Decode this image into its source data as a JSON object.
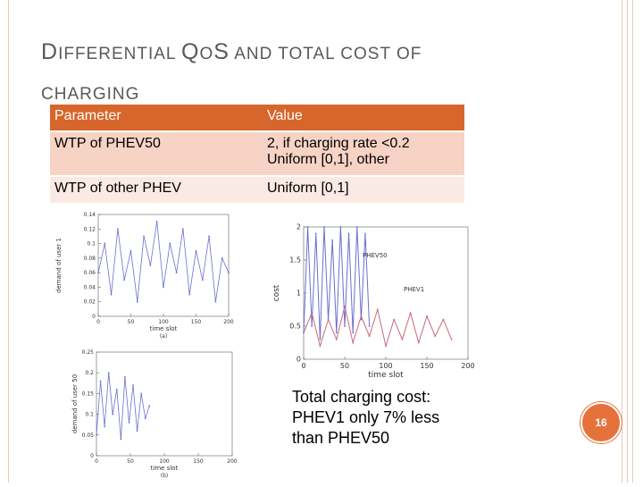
{
  "slide": {
    "title_line1_cap1": "D",
    "title_line1_rest1": "IFFERENTIAL ",
    "title_line1_cap2": "Q",
    "title_line1_rest2": "O",
    "title_line1_cap3": "S",
    "title_line1_rest3": " AND TOTAL COST OF",
    "title_line2": "CHARGING",
    "slide_number": "16"
  },
  "table": {
    "header": [
      "Parameter",
      "Value"
    ],
    "rows": [
      {
        "param": "WTP of PHEV50",
        "value_line1": "2, if charging rate <0.2",
        "value_line2": "Uniform [0,1], other"
      },
      {
        "param": "WTP of other PHEV",
        "value_line1": "Uniform [0,1]",
        "value_line2": ""
      }
    ]
  },
  "caption": {
    "line1": "Total charging cost:",
    "line2": "PHEV1 only 7% less",
    "line3": "than PHEV50"
  },
  "colors": {
    "accent": "#d7662c",
    "row1": "#f6d3c4",
    "row2": "#fbeae3",
    "series_blue": "#6a6fd0",
    "series_red": "#c86a7c"
  },
  "chart_data": [
    {
      "type": "line",
      "title": "",
      "xlabel": "time slot",
      "ylabel": "demand of user 1",
      "panel_label": "(a)",
      "x_ticks": [
        "0",
        "50",
        "100",
        "150",
        "200"
      ],
      "y_ticks": [
        "0",
        "0.02",
        "0.04",
        "0.06",
        "0.08",
        "0.1",
        "0.12",
        "0.14"
      ],
      "xlim": [
        0,
        200
      ],
      "ylim": [
        0,
        0.14
      ],
      "series": [
        {
          "name": "user 1",
          "x": [
            0,
            10,
            20,
            30,
            40,
            50,
            60,
            70,
            80,
            90,
            100,
            110,
            120,
            130,
            140,
            150,
            160,
            170,
            180,
            190,
            200
          ],
          "values": [
            0.06,
            0.1,
            0.03,
            0.12,
            0.05,
            0.09,
            0.02,
            0.11,
            0.07,
            0.13,
            0.04,
            0.1,
            0.06,
            0.12,
            0.03,
            0.09,
            0.05,
            0.11,
            0.02,
            0.08,
            0.06
          ]
        }
      ]
    },
    {
      "type": "line",
      "title": "",
      "xlabel": "time slot",
      "ylabel": "demand of user 50",
      "panel_label": "(b)",
      "x_ticks": [
        "0",
        "50",
        "100",
        "150",
        "200"
      ],
      "y_ticks": [
        "0",
        "0.05",
        "0.1",
        "0.15",
        "0.2",
        "0.25"
      ],
      "xlim": [
        0,
        200
      ],
      "ylim": [
        0,
        0.25
      ],
      "series": [
        {
          "name": "user 50",
          "x": [
            0,
            6,
            12,
            18,
            24,
            30,
            36,
            42,
            48,
            54,
            60,
            66,
            72,
            78
          ],
          "values": [
            0.05,
            0.18,
            0.07,
            0.2,
            0.1,
            0.16,
            0.04,
            0.19,
            0.08,
            0.17,
            0.06,
            0.15,
            0.09,
            0.12
          ]
        }
      ]
    },
    {
      "type": "line",
      "title": "",
      "xlabel": "time slot",
      "ylabel": "cost",
      "x_ticks": [
        "0",
        "50",
        "100",
        "150",
        "200"
      ],
      "y_ticks": [
        "0",
        "0.5",
        "1",
        "1.5",
        "2"
      ],
      "xlim": [
        0,
        200
      ],
      "ylim": [
        0,
        2
      ],
      "series": [
        {
          "name": "PHEV50",
          "x": [
            0,
            5,
            10,
            15,
            20,
            25,
            30,
            35,
            40,
            45,
            50,
            55,
            60,
            65,
            70,
            75,
            80
          ],
          "values": [
            0.4,
            2.0,
            0.5,
            1.9,
            0.3,
            2.0,
            0.6,
            1.8,
            0.4,
            2.0,
            0.5,
            1.9,
            0.4,
            2.0,
            0.6,
            1.9,
            0.5
          ]
        },
        {
          "name": "PHEV1",
          "x": [
            0,
            10,
            20,
            30,
            40,
            50,
            60,
            70,
            80,
            90,
            100,
            110,
            120,
            130,
            140,
            150,
            160,
            170,
            180
          ],
          "values": [
            0.4,
            0.7,
            0.2,
            0.6,
            0.3,
            0.8,
            0.25,
            0.65,
            0.35,
            0.75,
            0.2,
            0.6,
            0.3,
            0.7,
            0.25,
            0.65,
            0.35,
            0.6,
            0.3
          ]
        }
      ]
    }
  ]
}
